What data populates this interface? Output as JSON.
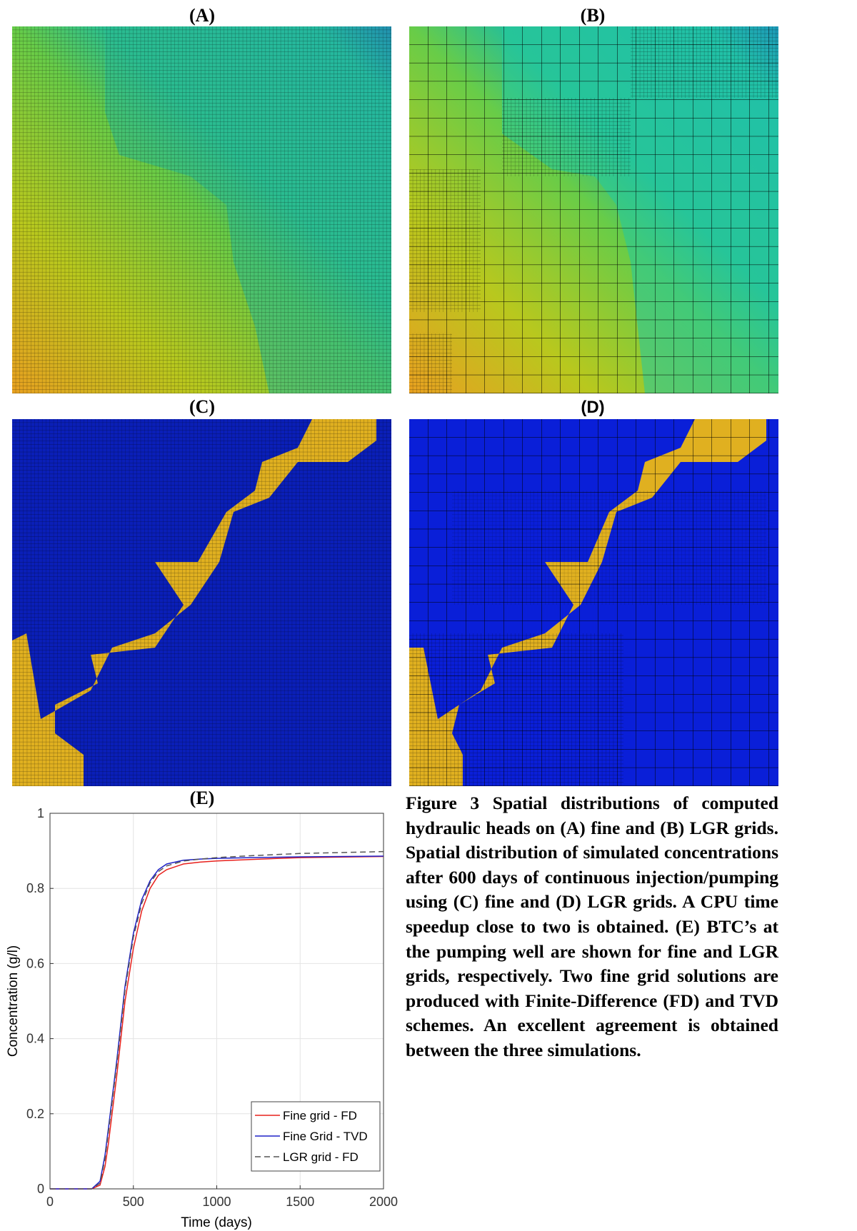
{
  "panels": [
    {
      "label": "(A)"
    },
    {
      "label": "(B)"
    },
    {
      "label": "(C)"
    },
    {
      "label": "(D)"
    }
  ],
  "caption": "Figure 3 Spatial distributions of computed hydraulic heads on (A) fine and (B) LGR grids. Spatial distribution of simulated concentrations after 600 days of continuous injection/pumping using (C) fine and (D) LGR grids. A CPU time speedup close to two is obtained. (E) BTC’s at the pumping well are shown for fine and LGR grids, respectively. Two fine grid solutions are produced with Finite-Difference (FD) and TVD schemes. An excellent agreement is obtained between the three simulations.",
  "chart_data": {
    "type": "line",
    "title": "(E)",
    "x_label": "Time (days)",
    "y_label": "Concentration (g/l)",
    "x": [
      0,
      250,
      300,
      330,
      350,
      400,
      450,
      500,
      550,
      600,
      650,
      700,
      800,
      900,
      1000,
      1200,
      1500,
      2000
    ],
    "series": [
      {
        "name": "Fine grid - FD",
        "color": "#e8201c",
        "linestyle": "solid",
        "values": [
          0,
          0,
          0.01,
          0.06,
          0.12,
          0.3,
          0.5,
          0.64,
          0.74,
          0.8,
          0.835,
          0.85,
          0.865,
          0.87,
          0.873,
          0.877,
          0.882,
          0.885
        ]
      },
      {
        "name": "Fine Grid - TVD",
        "color": "#1f22c8",
        "linestyle": "solid",
        "values": [
          0,
          0,
          0.02,
          0.09,
          0.16,
          0.34,
          0.54,
          0.68,
          0.77,
          0.82,
          0.85,
          0.865,
          0.875,
          0.878,
          0.88,
          0.882,
          0.884,
          0.886
        ]
      },
      {
        "name": "LGR grid - FD",
        "color": "#555555",
        "linestyle": "dashed",
        "values": [
          0,
          0,
          0.015,
          0.08,
          0.15,
          0.33,
          0.53,
          0.67,
          0.76,
          0.815,
          0.845,
          0.86,
          0.873,
          0.878,
          0.882,
          0.887,
          0.893,
          0.898
        ]
      }
    ],
    "xlim": [
      0,
      2000
    ],
    "ylim": [
      0,
      1
    ],
    "xticks": [
      0,
      500,
      1000,
      1500,
      2000
    ],
    "yticks": [
      0,
      0.2,
      0.4,
      0.6,
      0.8,
      1
    ],
    "grid": true,
    "legend": "lower right"
  }
}
